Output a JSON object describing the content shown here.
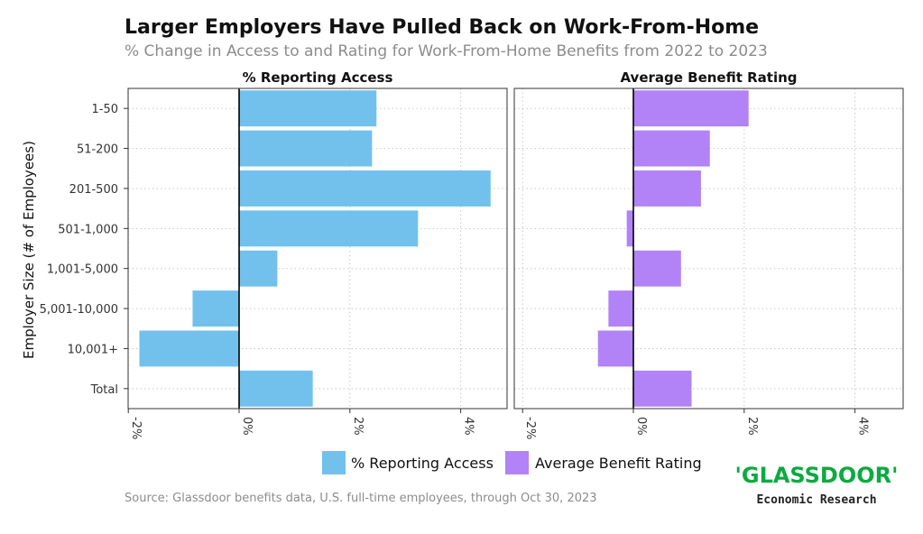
{
  "title": "Larger Employers Have Pulled Back on Work-From-Home",
  "subtitle": "% Change in Access to and Rating for Work-From-Home Benefits from 2022 to 2023",
  "source": "Source: Glassdoor benefits data, U.S. full-time employees, through Oct 30, 2023",
  "logo": {
    "brand": "'GLASSDOOR'",
    "sub": "Economic Research",
    "color": "#0caa41"
  },
  "colors": {
    "access": "#72c1ec",
    "rating": "#b283f6",
    "grid": "#c9c9c9",
    "axis": "#000000"
  },
  "chart_data": {
    "type": "bar",
    "orientation": "horizontal",
    "ylabel": "Employer Size (# of Employees)",
    "categories": [
      "1-50",
      "51-200",
      "201-500",
      "501-1,000",
      "1,001-5,000",
      "5,001-10,000",
      "10,001+",
      "Total"
    ],
    "xlim": [
      -2.2,
      4.8
    ],
    "x_ticks": [
      "-2%",
      "0%",
      "2%",
      "4%"
    ],
    "x_tick_values": [
      -2,
      0,
      2,
      4
    ],
    "grid": true,
    "legend": "bottom",
    "panels": [
      {
        "title": "% Reporting Access",
        "series_name": "% Reporting Access",
        "values": [
          2.48,
          2.4,
          4.54,
          3.23,
          0.69,
          -0.84,
          -1.8,
          1.33
        ]
      },
      {
        "title": "Average Benefit Rating",
        "series_name": "Average Benefit Rating",
        "values": [
          2.08,
          1.38,
          1.22,
          -0.12,
          0.86,
          -0.45,
          -0.64,
          1.05
        ]
      }
    ]
  }
}
